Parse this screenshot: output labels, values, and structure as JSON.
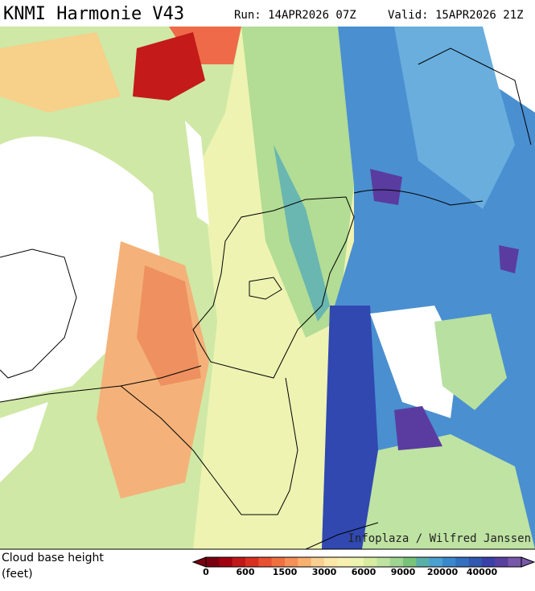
{
  "header": {
    "title": "KNMI Harmonie V43",
    "run": "Run: 14APR2026 07Z",
    "valid": "Valid: 15APR2026 21Z"
  },
  "map": {
    "credit": "Infoplaza / Wilfred Janssen"
  },
  "legend": {
    "label_line1": "Cloud base height",
    "label_line2": "(feet)",
    "colors": [
      "#7a0010",
      "#a00010",
      "#c01818",
      "#d83020",
      "#e85030",
      "#f07040",
      "#f49058",
      "#f8b070",
      "#fad090",
      "#fce6a8",
      "#f8f0b0",
      "#eef4b0",
      "#d8eca0",
      "#bfe3a0",
      "#9fd592",
      "#78c478",
      "#5ab0a8",
      "#4aa0d0",
      "#3a88cc",
      "#3470c0",
      "#3058b0",
      "#3a40a8",
      "#5840a0",
      "#7858a8"
    ],
    "ticks": [
      "0",
      "600",
      "1500",
      "3000",
      "6000",
      "9000",
      "20000",
      "40000"
    ]
  }
}
